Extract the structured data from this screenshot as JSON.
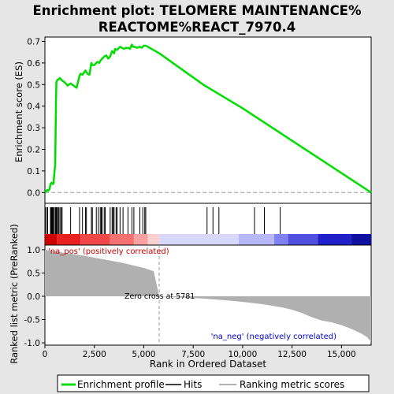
{
  "chart_data": {
    "type": "line",
    "title_line1": "Enrichment plot: TELOMERE MAINTENANCE%",
    "title_line2": "REACTOME%REACT_7970.4",
    "xlabel": "Rank in Ordered Dataset",
    "xlim": [
      0,
      16500
    ],
    "x_ticks": [
      0,
      2500,
      5000,
      7500,
      10000,
      12500,
      15000
    ],
    "x_tick_labels": [
      "0",
      "2,500",
      "5,000",
      "7,500",
      "10,000",
      "12,500",
      "15,000"
    ],
    "panels": {
      "enrichment": {
        "ylabel": "Enrichment score (ES)",
        "ylim": [
          -0.05,
          0.72
        ],
        "y_ticks": [
          0.0,
          0.1,
          0.2,
          0.3,
          0.4,
          0.5,
          0.6,
          0.7
        ],
        "y_tick_labels": [
          "0.0",
          "0.1",
          "0.2",
          "0.3",
          "0.4",
          "0.5",
          "0.6",
          "0.7"
        ],
        "series": [
          {
            "name": "Enrichment profile",
            "color": "#00dd00",
            "x": [
              0,
              60,
              120,
              160,
              230,
              290,
              330,
              380,
              430,
              480,
              520,
              540,
              560,
              580,
              620,
              700,
              760,
              850,
              1000,
              1150,
              1300,
              1450,
              1600,
              1750,
              1800,
              1900,
              2050,
              2150,
              2250,
              2350,
              2400,
              2500,
              2600,
              2650,
              2750,
              2800,
              2900,
              3000,
              3100,
              3200,
              3300,
              3400,
              3500,
              3550,
              3650,
              3700,
              3800,
              3900,
              4000,
              4100,
              4200,
              4300,
              4400,
              4450,
              4550,
              4650,
              4800,
              4900,
              5000,
              5100,
              5200,
              5781,
              8000,
              10000,
              12000,
              14000,
              16500
            ],
            "y": [
              0.0,
              0.005,
              0.012,
              0.008,
              0.015,
              0.04,
              0.045,
              0.04,
              0.04,
              0.09,
              0.13,
              0.27,
              0.42,
              0.51,
              0.52,
              0.525,
              0.53,
              0.52,
              0.51,
              0.495,
              0.505,
              0.495,
              0.485,
              0.54,
              0.55,
              0.545,
              0.565,
              0.55,
              0.545,
              0.6,
              0.59,
              0.59,
              0.6,
              0.605,
              0.6,
              0.61,
              0.62,
              0.63,
              0.635,
              0.62,
              0.63,
              0.655,
              0.645,
              0.665,
              0.66,
              0.665,
              0.675,
              0.67,
              0.665,
              0.67,
              0.67,
              0.665,
              0.685,
              0.675,
              0.675,
              0.67,
              0.675,
              0.67,
              0.68,
              0.68,
              0.675,
              0.645,
              0.5,
              0.39,
              0.27,
              0.15,
              0.0
            ]
          }
        ],
        "hits_label": "Hits",
        "hits": [
          30,
          110,
          140,
          280,
          320,
          350,
          380,
          420,
          470,
          530,
          560,
          600,
          640,
          700,
          760,
          820,
          870,
          1300,
          1750,
          1900,
          2050,
          2100,
          2350,
          2400,
          2600,
          2700,
          2800,
          2850,
          2900,
          3000,
          3050,
          3300,
          3400,
          3450,
          3500,
          3600,
          3650,
          3800,
          3950,
          4200,
          4400,
          4500,
          4800,
          4950,
          5050,
          5100,
          8200,
          8500,
          8800,
          10600,
          11100,
          11900
        ]
      },
      "metric": {
        "ylabel": "Ranked list metric (PreRanked)",
        "ylim": [
          -1.05,
          1.1
        ],
        "y_ticks": [
          1.0,
          0.5,
          0.0,
          -0.5,
          -1.0
        ],
        "y_tick_labels": [
          "1.0",
          "0.5",
          "0.0",
          "-0.5",
          "-1.0"
        ],
        "legend_label": "Ranking metric scores",
        "color": "#b0b0b0",
        "x": [
          0,
          300,
          600,
          1000,
          1500,
          2000,
          2500,
          3000,
          3500,
          4000,
          4500,
          5000,
          5500,
          5781,
          6500,
          8000,
          9000,
          10000,
          11000,
          12000,
          12500,
          13000,
          13500,
          14000,
          14500,
          15000,
          15500,
          16000,
          16300,
          16500
        ],
        "y": [
          1.0,
          0.98,
          0.96,
          0.93,
          0.9,
          0.87,
          0.83,
          0.79,
          0.75,
          0.71,
          0.66,
          0.61,
          0.54,
          0.0,
          -0.02,
          -0.05,
          -0.08,
          -0.12,
          -0.17,
          -0.24,
          -0.29,
          -0.36,
          -0.45,
          -0.52,
          -0.56,
          -0.62,
          -0.7,
          -0.8,
          -0.88,
          -0.98
        ],
        "annotations": {
          "pos_label": "'na_pos' (positively correlated)",
          "pos_color": "#cc0000",
          "neg_label": "'na_neg' (negatively correlated)",
          "neg_color": "#0000cc",
          "zero_cross_label": "Zero cross at 5781",
          "zero_cross_x": 5781
        }
      },
      "rank_bar": {
        "segments": [
          {
            "from": 0,
            "to": 600,
            "color": "#cc0000"
          },
          {
            "from": 600,
            "to": 1800,
            "color": "#e82020"
          },
          {
            "from": 1800,
            "to": 3300,
            "color": "#f04848"
          },
          {
            "from": 3300,
            "to": 4500,
            "color": "#f57070"
          },
          {
            "from": 4500,
            "to": 5200,
            "color": "#f9a0a0"
          },
          {
            "from": 5200,
            "to": 5781,
            "color": "#fcd0d0"
          },
          {
            "from": 5781,
            "to": 9800,
            "color": "#d8d8fc"
          },
          {
            "from": 9800,
            "to": 11600,
            "color": "#b8b8f8"
          },
          {
            "from": 11600,
            "to": 12300,
            "color": "#8080f0"
          },
          {
            "from": 12300,
            "to": 13800,
            "color": "#5050e0"
          },
          {
            "from": 13800,
            "to": 15500,
            "color": "#2020c8"
          },
          {
            "from": 15500,
            "to": 16500,
            "color": "#1010a0"
          }
        ]
      }
    },
    "legend": {
      "entries": [
        {
          "label": "Enrichment profile",
          "color": "#00dd00"
        },
        {
          "label": "Hits",
          "color": "#000000"
        },
        {
          "label": "Ranking metric scores",
          "color": "#b0b0b0"
        }
      ]
    }
  }
}
